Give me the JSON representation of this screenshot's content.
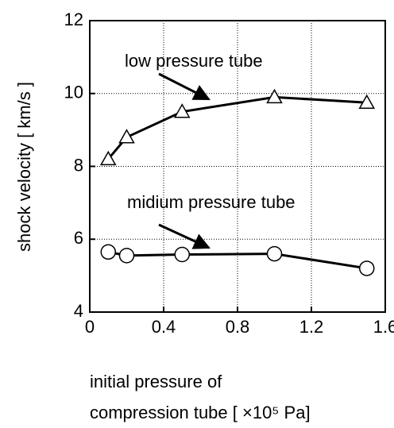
{
  "chart_data": {
    "type": "line",
    "xlabel": [
      "initial pressure of",
      "compression tube [ ×10⁵ Pa]"
    ],
    "ylabel": "shock velocity [ km/s ]",
    "x": [
      0.1,
      0.2,
      0.5,
      1.0,
      1.5
    ],
    "series": [
      {
        "name": "low pressure tube",
        "color": "#000000",
        "marker": "triangle",
        "values": [
          8.2,
          8.8,
          9.5,
          9.9,
          9.75
        ]
      },
      {
        "name": "midium pressure tube",
        "color": "#000000",
        "marker": "circle",
        "values": [
          5.65,
          5.55,
          5.58,
          5.6,
          5.2
        ]
      }
    ],
    "xlim": [
      0,
      1.6
    ],
    "xticks": [
      0,
      0.4,
      0.8,
      1.2,
      1.6
    ],
    "ylim": [
      4,
      12
    ],
    "yticks": [
      4,
      6,
      8,
      10,
      12
    ],
    "grid": true
  }
}
